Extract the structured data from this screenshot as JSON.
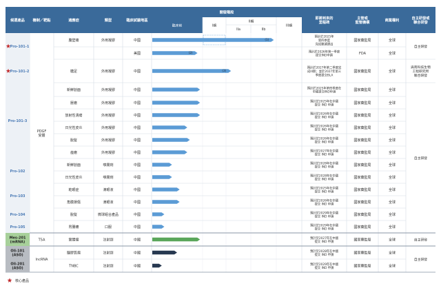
{
  "chart_data": {
    "type": "table",
    "headers": {
      "product": "候選產品",
      "target": "機制／靶點",
      "indication": "適應症",
      "formulation": "類型",
      "region": "臨床試驗地區",
      "stage_group": "開發階段",
      "preclinical": "臨床前",
      "phase1": "I期",
      "phase2": "II期",
      "phase2a": "IIa",
      "phase2b": "IIb",
      "phase3": "III期",
      "milestone": "即將到來的里程碑",
      "regulator": "主管或監管機構",
      "rights": "商業權利",
      "partner": "自主研發或聯合研發"
    },
    "products": [
      {
        "name": "Pro-101-1",
        "core": true,
        "bg": "light",
        "rows": [
          0,
          1
        ]
      },
      {
        "name": "Pro-101-2",
        "core": true,
        "bg": "light",
        "rows": [
          2,
          2
        ]
      },
      {
        "name": "Pro-101-3",
        "core": false,
        "bg": "light",
        "rows": [
          3,
          8
        ]
      },
      {
        "name": "Pro-102",
        "core": false,
        "bg": "light",
        "rows": [
          9,
          10
        ]
      },
      {
        "name": "Pro-103",
        "core": false,
        "bg": "light",
        "rows": [
          11,
          12
        ]
      },
      {
        "name": "Pro-104",
        "core": false,
        "bg": "light",
        "rows": [
          13,
          13
        ]
      },
      {
        "name": "Pro-105",
        "core": false,
        "bg": "light",
        "rows": [
          14,
          14
        ]
      },
      {
        "name": "Mes-201\n(mRNA)",
        "core": false,
        "bg": "green",
        "rows": [
          15,
          15
        ]
      },
      {
        "name": "Oli-101\n(ASO)",
        "core": false,
        "bg": "grey",
        "rows": [
          16,
          16
        ]
      },
      {
        "name": "Oli-201\n(ASO)",
        "core": false,
        "bg": "grey",
        "rows": [
          17,
          17
        ]
      }
    ],
    "targets": [
      {
        "label": "PDGF\n受體",
        "rows": [
          0,
          14
        ]
      },
      {
        "label": "TSA",
        "rows": [
          15,
          15
        ]
      },
      {
        "label": "lncRNA",
        "rows": [
          16,
          17
        ]
      }
    ],
    "rows": [
      {
        "indication": "腹壁痛",
        "formulation": "外用凝膠",
        "region": "中國",
        "progress": 2.95,
        "bar_label": "(1)",
        "color": "#5b9bd5",
        "milestone": "預計於2025年\n第四季度\n完成數據讀出",
        "regulator": "國家藥監局",
        "rights": "全球"
      },
      {
        "indication": "",
        "formulation": "",
        "region": "美國",
        "progress": 0.9,
        "bar_label": "(2)",
        "color": "#5b9bd5",
        "milestone": "預計於2026年第一季度\n提交IND申請",
        "regulator": "FDA",
        "rights": "全球"
      },
      {
        "indication": "糖足",
        "formulation": "外用凝膠",
        "region": "中國",
        "progress": 2.1,
        "bar_label": "(3)",
        "color": "#5b9bd5",
        "milestone": "預計於2027年第二季度完\n成III期；並於2027年第三\n季度提交BLA",
        "regulator": "國家藥監局",
        "rights": "全球"
      },
      {
        "indication": "新鮮創面",
        "formulation": "外用凝膠",
        "region": "中國",
        "progress": 0.95,
        "bar_label": "",
        "color": "#5b9bd5",
        "milestone": "預計於2025年第四季度在\n中國提交IND申請",
        "regulator": "國家藥監局",
        "rights": "全球"
      },
      {
        "indication": "壓瘡",
        "formulation": "外用凝膠",
        "region": "中國",
        "progress": 0.95,
        "bar_label": "",
        "color": "#5b9bd5",
        "milestone": "預計於2025年在中國\n提交 IND 申請",
        "regulator": "國家藥監局",
        "rights": "全球"
      },
      {
        "indication": "放射性潰瘍",
        "formulation": "外用凝膠",
        "region": "中國",
        "progress": 0.95,
        "bar_label": "",
        "color": "#5b9bd5",
        "milestone": "預計於2026年在中國\n提交 IND 申請",
        "regulator": "國家藥監局",
        "rights": "全球"
      },
      {
        "indication": "日光性皮炎",
        "formulation": "外用凝膠",
        "region": "中國",
        "progress": 0.7,
        "bar_label": "",
        "color": "#5b9bd5",
        "milestone": "預計於2026年在中國\n提交 IND 申請",
        "regulator": "國家藥監局",
        "rights": "全球"
      },
      {
        "indication": "脫髮",
        "formulation": "外用凝膠",
        "region": "中國",
        "progress": 0.75,
        "bar_label": "",
        "color": "#5b9bd5",
        "milestone": "預計於2026年在中國\n提交 IND 申請",
        "regulator": "國家藥監局",
        "rights": "全球"
      },
      {
        "indication": "痤瘡",
        "formulation": "外用凝膠",
        "region": "中國",
        "progress": 0.7,
        "bar_label": "",
        "color": "#5b9bd5",
        "milestone": "預計於2027年在中國\n提交 IND 申請",
        "regulator": "國家藥監局",
        "rights": "全球"
      },
      {
        "indication": "新鮮創面",
        "formulation": "噴霧劑",
        "region": "中國",
        "progress": 0.4,
        "bar_label": "",
        "color": "#5b9bd5",
        "milestone": "預計於2028年在中國\n提交 IND 申請",
        "regulator": "國家藥監局",
        "rights": "全球"
      },
      {
        "indication": "日光性皮炎",
        "formulation": "噴霧劑",
        "region": "中國",
        "progress": 0.4,
        "bar_label": "",
        "color": "#5b9bd5",
        "milestone": "預計於2028年在中國\n提交 IND 申請",
        "regulator": "國家藥監局",
        "rights": "全球"
      },
      {
        "indication": "乾眼症",
        "formulation": "滴眼液",
        "region": "中國",
        "progress": 0.55,
        "bar_label": "",
        "color": "#5b9bd5",
        "milestone": "預計於2025年在中國\n提交 IND 申請",
        "regulator": "國家藥監局",
        "rights": "全球"
      },
      {
        "indication": "角膜損傷",
        "formulation": "滴眼液",
        "region": "中國",
        "progress": 0.55,
        "bar_label": "",
        "color": "#5b9bd5",
        "milestone": "預計於2026年在中國\n提交 IND 申請",
        "regulator": "國家藥監局",
        "rights": "全球"
      },
      {
        "indication": "脫髮",
        "formulation": "微球組合產品",
        "region": "中國",
        "progress": 0.25,
        "bar_label": "",
        "color": "#5b9bd5",
        "milestone": "預計於2029年在中國\n提交 IND 申請",
        "regulator": "國家藥監局",
        "rights": "全球"
      },
      {
        "indication": "胃腸瘻",
        "formulation": "口服",
        "region": "中國",
        "progress": 0.25,
        "bar_label": "",
        "color": "#5b9bd5",
        "milestone": "預計於2029年在中國\n提交 IND 申請",
        "regulator": "國家藥監局",
        "rights": "全球"
      },
      {
        "indication": "實體瘤",
        "formulation": "注射劑",
        "region": "中國",
        "progress": 0.95,
        "bar_label": "",
        "color": "#5aa65a",
        "milestone": "預計於2027年在中國\n提交 IND 申請",
        "regulator": "國家藥監局",
        "rights": "全球"
      },
      {
        "indication": "腦膠質瘤",
        "formulation": "注射劑",
        "region": "中國",
        "progress": 0.5,
        "bar_label": "",
        "color": "#263850",
        "milestone": "預計於2028年在中國\n提交 IND 申請",
        "regulator": "國家藥監局",
        "rights": "全球"
      },
      {
        "indication": "TNBC",
        "formulation": "注射劑",
        "region": "中國",
        "progress": 0.2,
        "bar_label": "",
        "color": "#263850",
        "milestone": "預計於2029年在中國\n提交 IND 申請",
        "regulator": "國家藥監局",
        "rights": "全球"
      }
    ],
    "partners": [
      {
        "label": "自主研發",
        "rows": [
          0,
          1
        ]
      },
      {
        "label": "與南科技生物\n工程研究所\n聯合研發",
        "rows": [
          2,
          2
        ]
      },
      {
        "label": "自主研發",
        "rows": [
          3,
          14
        ]
      },
      {
        "label": "自主研發",
        "rows": [
          15,
          15
        ]
      },
      {
        "label": "自主研發",
        "rows": [
          16,
          17
        ]
      }
    ],
    "legend": "核心產品"
  },
  "colors": {
    "header_bg": "#3a6a9a",
    "header_text": "#ffffff",
    "star": "#c0292b",
    "product_text": "#4a7ab5",
    "product_light_bg": "#edf1f6",
    "product_green_bg": "#a7d09a",
    "product_grey_bg": "#b8bcc2",
    "grid": "#d4dbe4"
  }
}
